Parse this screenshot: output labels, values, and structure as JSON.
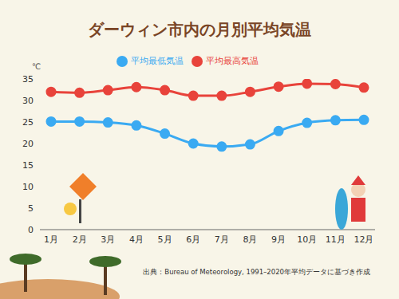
{
  "chart_data": {
    "type": "line",
    "title": "ダーウィン市内の月別平均気温",
    "ylabel": "℃",
    "source": "出典：Bureau of Meteorology, 1991–2020年平均データに基づき作成",
    "categories": [
      "1月",
      "2月",
      "3月",
      "4月",
      "5月",
      "6月",
      "7月",
      "8月",
      "9月",
      "10月",
      "11月",
      "12月"
    ],
    "series": [
      {
        "name": "平均最高気温",
        "color": "#e8433b",
        "values": [
          32.0,
          31.8,
          32.4,
          33.1,
          32.4,
          31.1,
          31.1,
          32.0,
          33.2,
          33.9,
          33.8,
          33.0
        ]
      },
      {
        "name": "平均最低気温",
        "color": "#3aaaf2",
        "values": [
          25.1,
          25.1,
          24.9,
          24.2,
          22.3,
          20.0,
          19.3,
          19.8,
          22.9,
          24.8,
          25.4,
          25.5
        ]
      }
    ],
    "ylim": [
      0,
      35
    ],
    "yticks": [
      0,
      5,
      10,
      15,
      20,
      25,
      30,
      35
    ],
    "grid": false,
    "legend": "top",
    "marker": "circle",
    "line_style": "solid"
  }
}
